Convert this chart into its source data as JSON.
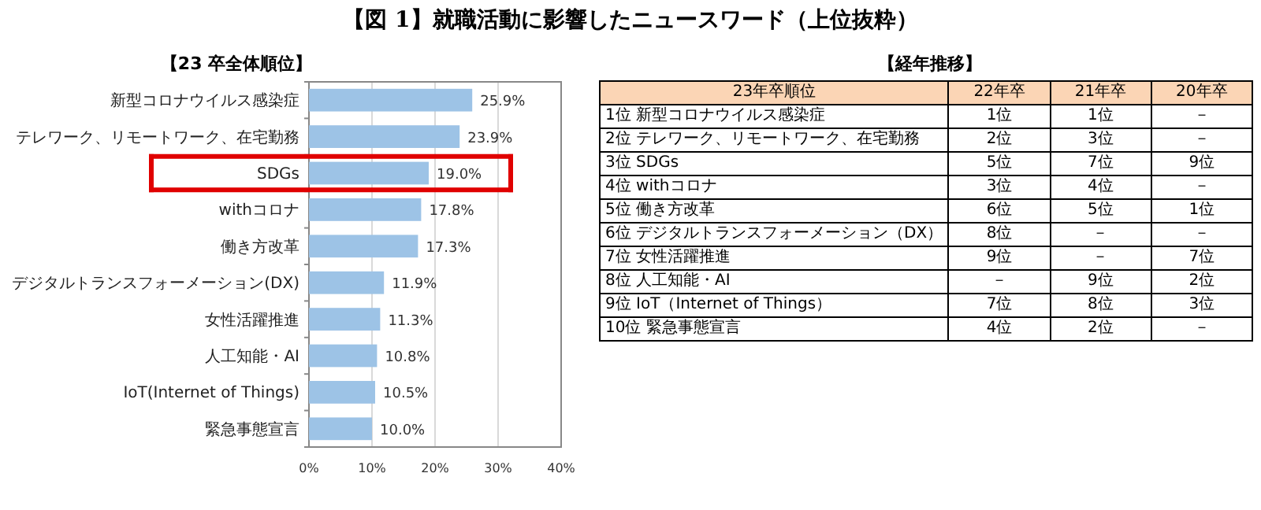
{
  "chart_data": [
    {
      "type": "bar",
      "orientation": "horizontal",
      "title": "【図 1】就職活動に影響したニュースワード（上位抜粋）",
      "subtitle": "【23 卒全体順位】",
      "categories": [
        "新型コロナウイルス感染症",
        "テレワーク、リモートワーク、在宅勤務",
        "SDGs",
        "withコロナ",
        "働き方改革",
        "デジタルトランスフォーメーション(DX)",
        "女性活躍推進",
        "人工知能・AI",
        "IoT(Internet of Things)",
        "緊急事態宣言"
      ],
      "values": [
        25.9,
        23.9,
        19.0,
        17.8,
        17.3,
        11.9,
        11.3,
        10.8,
        10.5,
        10.0
      ],
      "value_labels": [
        "25.9%",
        "23.9%",
        "19.0%",
        "17.8%",
        "17.3%",
        "11.9%",
        "11.3%",
        "10.8%",
        "10.5%",
        "10.0%"
      ],
      "color": "#9dc3e6",
      "xlim": [
        0,
        40
      ],
      "xticks": [
        {
          "value": 0,
          "label": "0%"
        },
        {
          "value": 10,
          "label": "10%"
        },
        {
          "value": 20,
          "label": "20%"
        },
        {
          "value": 30,
          "label": "30%"
        },
        {
          "value": 40,
          "label": "40%"
        }
      ],
      "grid": "x"
    },
    {
      "type": "other",
      "title": "【経年推移】",
      "categories": [
        "23年卒順位",
        "22年卒",
        "21年卒",
        "20年卒"
      ],
      "y_categories": [
        "1位 新型コロナウイルス感染症",
        "2位 テレワーク、リモートワーク、在宅勤務",
        "3位 SDGs",
        "4位 withコロナ",
        "5位 働き方改革",
        "6位 デジタルトランスフォーメーション（DX）",
        "7位 女性活躍推進",
        "8位 人工知能・AI",
        "9位 IoT（Internet of Things）",
        "10位 緊急事態宣言"
      ],
      "cell_labels": [
        [
          "1位",
          "1位",
          "－"
        ],
        [
          "2位",
          "3位",
          "－"
        ],
        [
          "5位",
          "7位",
          "9位"
        ],
        [
          "3位",
          "4位",
          "－"
        ],
        [
          "6位",
          "5位",
          "1位"
        ],
        [
          "8位",
          "－",
          "－"
        ],
        [
          "9位",
          "－",
          "7位"
        ],
        [
          "－",
          "9位",
          "2位"
        ],
        [
          "7位",
          "8位",
          "3位"
        ],
        [
          "4位",
          "2位",
          "－"
        ]
      ]
    }
  ]
}
